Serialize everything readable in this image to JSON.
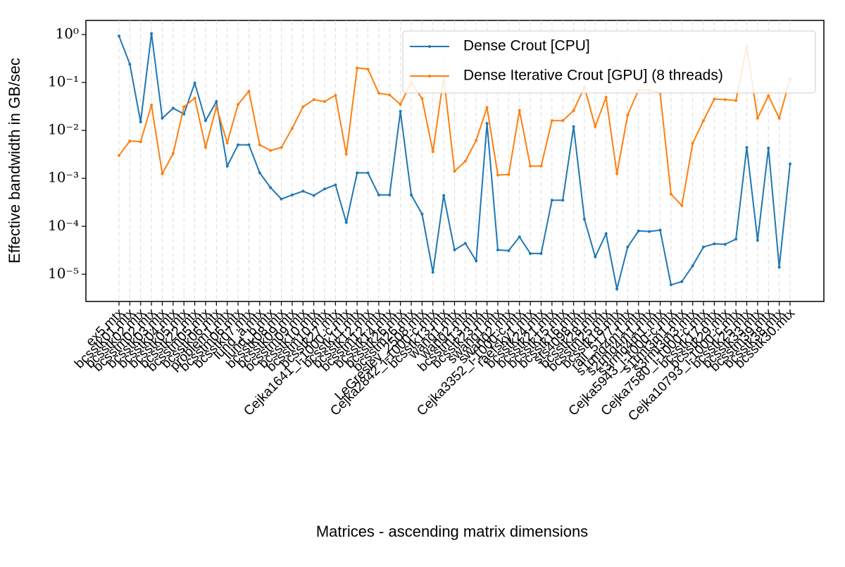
{
  "chart_data": {
    "type": "line",
    "xlabel": "Matrices - ascending matrix dimensions",
    "ylabel": "Effective bandwidth in GB/sec",
    "log_y": true,
    "grid_x": true,
    "legend": "upper right",
    "ylim": [
      2.7e-06,
      1.97
    ],
    "yticks": [
      {
        "value": 1,
        "label": "10⁰"
      },
      {
        "value": 0.1,
        "label": "10⁻¹"
      },
      {
        "value": 0.01,
        "label": "10⁻²"
      },
      {
        "value": 0.001,
        "label": "10⁻³"
      },
      {
        "value": 0.0001,
        "label": "10⁻⁴"
      },
      {
        "value": 1e-05,
        "label": "10⁻⁵"
      }
    ],
    "categories": [
      "ex5.mtx",
      "bcsstk01.mtx",
      "bcsstk02.mtx",
      "bcsstm02.mtx",
      "bcsstk03.mtx",
      "bcsstk04.mtx",
      "bcsstk05.mtx",
      "bcsstk22.mtx",
      "bcsstm05.mtx",
      "bcsstk06.mtx",
      "problem1.mtx",
      "bcsstm06.mtx",
      "bcsstk07.mtx",
      "lund_a.mtx",
      "lund_b.mtx",
      "bcsstk08.mtx",
      "bcsstk09.mtx",
      "bcsstm09.mtx",
      "bcsstk10.mtx",
      "bcsstm10.mtx",
      "bcsstk27.mtx",
      "Cejka1641_i-1000-c.mtx",
      "bcsstk11.mtx",
      "bcsstk12.mtx",
      "bcsstm12.mtx",
      "bcsstk14.mtx",
      "bcsstk26.mtx",
      "bcsstm26.mtx",
      "LeGresley_2508.mtx",
      "Cejka2842_i-1000-c.mtx",
      "bcsstk13.mtx",
      "wang1.mtx",
      "wang2.mtx",
      "bcsstm13.mtx",
      "bcsstk23.mtx",
      "swang1.mtx",
      "swang2.mtx",
      "Cejka3352_i-1000-c.mtx",
      "raefsky1.mtx",
      "bcsstk24.mtx",
      "bcsstk21.mtx",
      "bcsstk15.mtx",
      "bcsstk16.mtx",
      "sts4098.mtx",
      "bcsstk28.mtx",
      "bcsstm25.mtx",
      "bcsstk18.mtx",
      "rail_5177.mtx",
      "s1rmq4m1.mtx",
      "s2rmq4m1.mtx",
      "s3rmq4m1.mtx",
      "Cejka5943_i-1000-c.mtx",
      "s1rmt3m1.mtx",
      "s3rmt3m3.mtx",
      "Cejka7580_i-1000-c.mtx",
      "bcsstk17.mtx",
      "bcsstk29.mtx",
      "Cejka10793_i-1000-c.mtx",
      "bcsstk25.mtx",
      "bcsstk33.mtx",
      "bcsstm39.mtx",
      "bcsstk38.mtx",
      "bcsstk30.mtx"
    ],
    "series": [
      {
        "name": "Dense Crout [CPU]",
        "color": "#1f77b4",
        "values": [
          0.93,
          0.24,
          0.015,
          1.05,
          0.018,
          0.029,
          0.022,
          0.097,
          0.016,
          0.04,
          0.0018,
          0.005,
          0.005,
          0.0013,
          0.00064,
          0.00037,
          0.00045,
          0.00054,
          0.00044,
          0.0006,
          0.00073,
          0.00012,
          0.0013,
          0.0013,
          0.00045,
          0.00045,
          0.025,
          0.00045,
          0.00018,
          1.1e-05,
          0.00044,
          3.2e-05,
          4.4e-05,
          1.9e-05,
          0.014,
          3.2e-05,
          3.1e-05,
          6e-05,
          2.7e-05,
          2.7e-05,
          0.00035,
          0.00035,
          0.012,
          0.00014,
          2.3e-05,
          7e-05,
          4.9e-06,
          3.7e-05,
          8e-05,
          7.8e-05,
          8.3e-05,
          6e-06,
          7e-06,
          1.5e-05,
          3.7e-05,
          4.3e-05,
          4.2e-05,
          5.4e-05,
          0.0044,
          5.1e-05,
          0.0043,
          1.4e-05,
          0.002
        ]
      },
      {
        "name": "Dense Iterative Crout [GPU] (8 threads)",
        "color": "#ff7f0e",
        "values": [
          0.003,
          0.006,
          0.0058,
          0.034,
          0.00125,
          0.0033,
          0.031,
          0.047,
          0.0044,
          0.031,
          0.0055,
          0.035,
          0.066,
          0.005,
          0.0038,
          0.0044,
          0.011,
          0.031,
          0.044,
          0.04,
          0.054,
          0.0032,
          0.2,
          0.19,
          0.06,
          0.055,
          0.035,
          0.1,
          0.046,
          0.0036,
          0.13,
          0.0014,
          0.0023,
          0.0062,
          0.03,
          0.00117,
          0.0012,
          0.026,
          0.0018,
          0.0018,
          0.016,
          0.016,
          0.026,
          0.08,
          0.012,
          0.049,
          0.00125,
          0.021,
          0.07,
          0.07,
          0.06,
          0.00047,
          0.00027,
          0.0054,
          0.016,
          0.045,
          0.044,
          0.042,
          0.55,
          0.018,
          0.053,
          0.018,
          0.12
        ]
      }
    ]
  }
}
